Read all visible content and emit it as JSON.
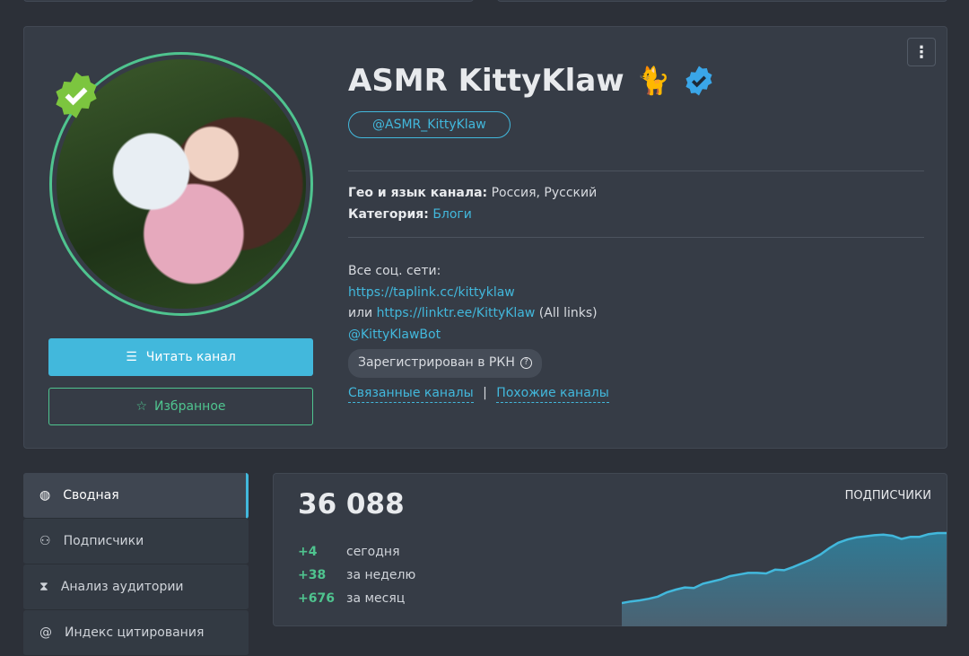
{
  "profile": {
    "title": "ASMR KittyKlaw",
    "title_emoji": "🐈",
    "handle": "@ASMR_KittyKlaw",
    "geo_label": "Гео и язык канала:",
    "geo_value": "Россия, Русский",
    "category_label": "Категория:",
    "category_value": "Блоги",
    "social_label": "Все соц. сети:",
    "link1": "https://taplink.cc/kittyklaw",
    "or_label": "или",
    "link2": "https://linktr.ee/KittyKlaw",
    "link2_suffix": "(All links)",
    "bot": "@KittyKlawBot",
    "rkn_badge": "Зарегистрирован в РКН",
    "related": "Связанные каналы",
    "separator": "|",
    "similar": "Похожие каналы",
    "read_button": "Читать канал",
    "favorite_button": "Избранное",
    "menu_icon": "⋮"
  },
  "sidebar": {
    "items": [
      {
        "label": "Сводная",
        "icon": "dashboard-icon",
        "active": true
      },
      {
        "label": "Подписчики",
        "icon": "users-icon"
      },
      {
        "label": "Анализ аудитории",
        "icon": "hourglass-icon"
      },
      {
        "label": "Индекс цитирования",
        "icon": "at-icon"
      }
    ]
  },
  "stats": {
    "total": "36 088",
    "chart_label": "ПОДПИСЧИКИ",
    "rows": [
      {
        "value": "+4",
        "label": "сегодня"
      },
      {
        "value": "+38",
        "label": "за неделю"
      },
      {
        "value": "+676",
        "label": "за месяц"
      }
    ]
  },
  "chart_data": {
    "type": "area",
    "values": [
      0,
      3,
      5,
      8,
      12,
      20,
      25,
      29,
      28,
      36,
      40,
      44,
      50,
      53,
      56,
      56,
      55,
      62,
      61,
      67,
      74,
      81,
      90,
      102,
      112,
      118,
      122,
      124,
      126,
      127,
      125,
      119,
      123,
      123,
      128,
      130,
      130
    ],
    "color": "#42b8dc",
    "grid": false
  },
  "colors": {
    "accent": "#42b8dc",
    "green": "#4fc48f",
    "card": "#363c46",
    "background": "#2c3038"
  }
}
